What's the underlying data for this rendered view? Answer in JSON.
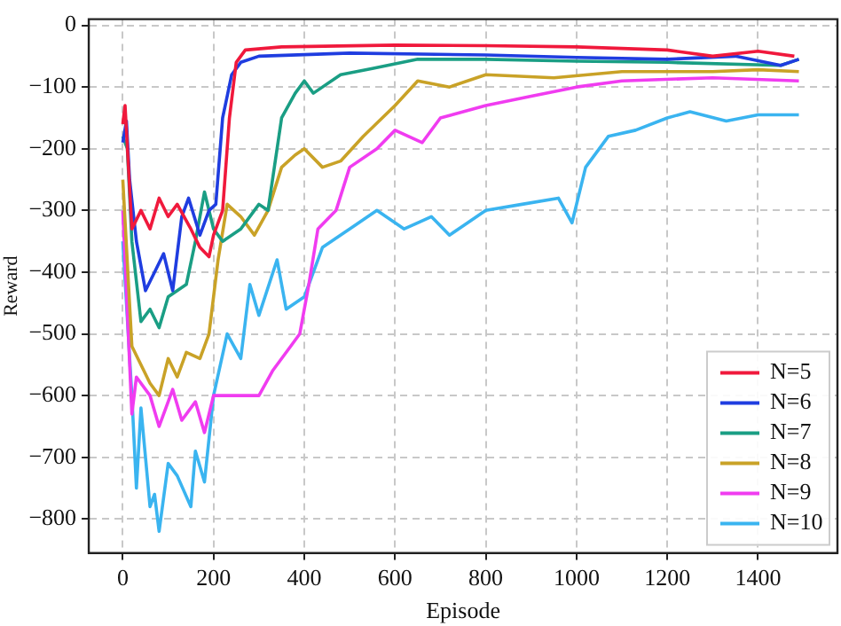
{
  "chart_data": {
    "type": "line",
    "xlabel": "Episode",
    "ylabel": "Reward",
    "xlim": [
      -75,
      1575
    ],
    "xticks": [
      0,
      200,
      400,
      600,
      800,
      1000,
      1200,
      1400
    ],
    "ylim": [
      -855,
      10
    ],
    "yticks": [
      -800,
      -700,
      -600,
      -500,
      -400,
      -300,
      -200,
      -100,
      0
    ],
    "grid": true,
    "legend": "bottom right",
    "marker": "none",
    "line_style": "solid",
    "series": [
      {
        "name": "N=5",
        "color": "#f0193c",
        "x": [
          0,
          5,
          20,
          40,
          60,
          80,
          100,
          120,
          150,
          170,
          190,
          200,
          220,
          235,
          250,
          270,
          350,
          600,
          800,
          1000,
          1200,
          1300,
          1400,
          1480
        ],
        "values": [
          -160,
          -130,
          -330,
          -300,
          -330,
          -280,
          -310,
          -290,
          -330,
          -360,
          -375,
          -340,
          -300,
          -150,
          -60,
          -40,
          -35,
          -32,
          -33,
          -35,
          -40,
          -50,
          -42,
          -50
        ]
      },
      {
        "name": "N=6",
        "color": "#1f3de0",
        "x": [
          0,
          8,
          15,
          30,
          50,
          70,
          90,
          110,
          130,
          145,
          170,
          190,
          205,
          220,
          240,
          260,
          300,
          500,
          800,
          1000,
          1200,
          1350,
          1450,
          1490
        ],
        "values": [
          -190,
          -155,
          -250,
          -350,
          -430,
          -400,
          -370,
          -430,
          -310,
          -280,
          -340,
          -300,
          -290,
          -150,
          -80,
          -60,
          -50,
          -45,
          -48,
          -52,
          -55,
          -50,
          -65,
          -55
        ]
      },
      {
        "name": "N=7",
        "color": "#1a9e84",
        "x": [
          0,
          10,
          20,
          40,
          60,
          80,
          100,
          140,
          160,
          180,
          200,
          220,
          260,
          300,
          320,
          350,
          380,
          400,
          420,
          480,
          550,
          650,
          800,
          1000,
          1200,
          1450,
          1490
        ],
        "values": [
          -180,
          -200,
          -350,
          -480,
          -460,
          -490,
          -440,
          -420,
          -350,
          -270,
          -330,
          -350,
          -330,
          -290,
          -300,
          -150,
          -110,
          -90,
          -110,
          -80,
          -70,
          -55,
          -55,
          -58,
          -60,
          -65,
          -55
        ]
      },
      {
        "name": "N=8",
        "color": "#c9a227",
        "x": [
          0,
          20,
          60,
          80,
          100,
          120,
          140,
          170,
          190,
          210,
          230,
          260,
          290,
          320,
          350,
          380,
          400,
          440,
          480,
          530,
          600,
          650,
          720,
          800,
          950,
          1100,
          1300,
          1400,
          1490
        ],
        "values": [
          -250,
          -520,
          -580,
          -600,
          -540,
          -570,
          -530,
          -540,
          -500,
          -380,
          -290,
          -310,
          -340,
          -300,
          -230,
          -210,
          -200,
          -230,
          -220,
          -180,
          -130,
          -90,
          -100,
          -80,
          -85,
          -75,
          -75,
          -72,
          -75
        ]
      },
      {
        "name": "N=9",
        "color": "#f03cf0",
        "x": [
          0,
          20,
          30,
          60,
          80,
          110,
          130,
          160,
          180,
          200,
          300,
          330,
          370,
          390,
          410,
          430,
          470,
          500,
          560,
          600,
          660,
          700,
          800,
          900,
          1000,
          1100,
          1300,
          1490
        ],
        "values": [
          -300,
          -630,
          -570,
          -600,
          -650,
          -590,
          -640,
          -610,
          -660,
          -600,
          -600,
          -560,
          -520,
          -500,
          -420,
          -330,
          -300,
          -230,
          -200,
          -170,
          -190,
          -150,
          -130,
          -115,
          -100,
          -90,
          -85,
          -90
        ]
      },
      {
        "name": "N=10",
        "color": "#3ab4f0",
        "x": [
          0,
          20,
          30,
          40,
          60,
          70,
          80,
          100,
          120,
          150,
          160,
          180,
          200,
          230,
          260,
          280,
          300,
          340,
          360,
          400,
          440,
          560,
          620,
          680,
          720,
          800,
          880,
          960,
          990,
          1020,
          1070,
          1130,
          1200,
          1250,
          1330,
          1400,
          1490
        ],
        "values": [
          -350,
          -600,
          -750,
          -620,
          -780,
          -760,
          -820,
          -710,
          -730,
          -780,
          -690,
          -740,
          -600,
          -500,
          -540,
          -420,
          -470,
          -380,
          -460,
          -440,
          -360,
          -300,
          -330,
          -310,
          -340,
          -300,
          -290,
          -280,
          -320,
          -230,
          -180,
          -170,
          -150,
          -140,
          -155,
          -145,
          -145
        ]
      }
    ]
  }
}
